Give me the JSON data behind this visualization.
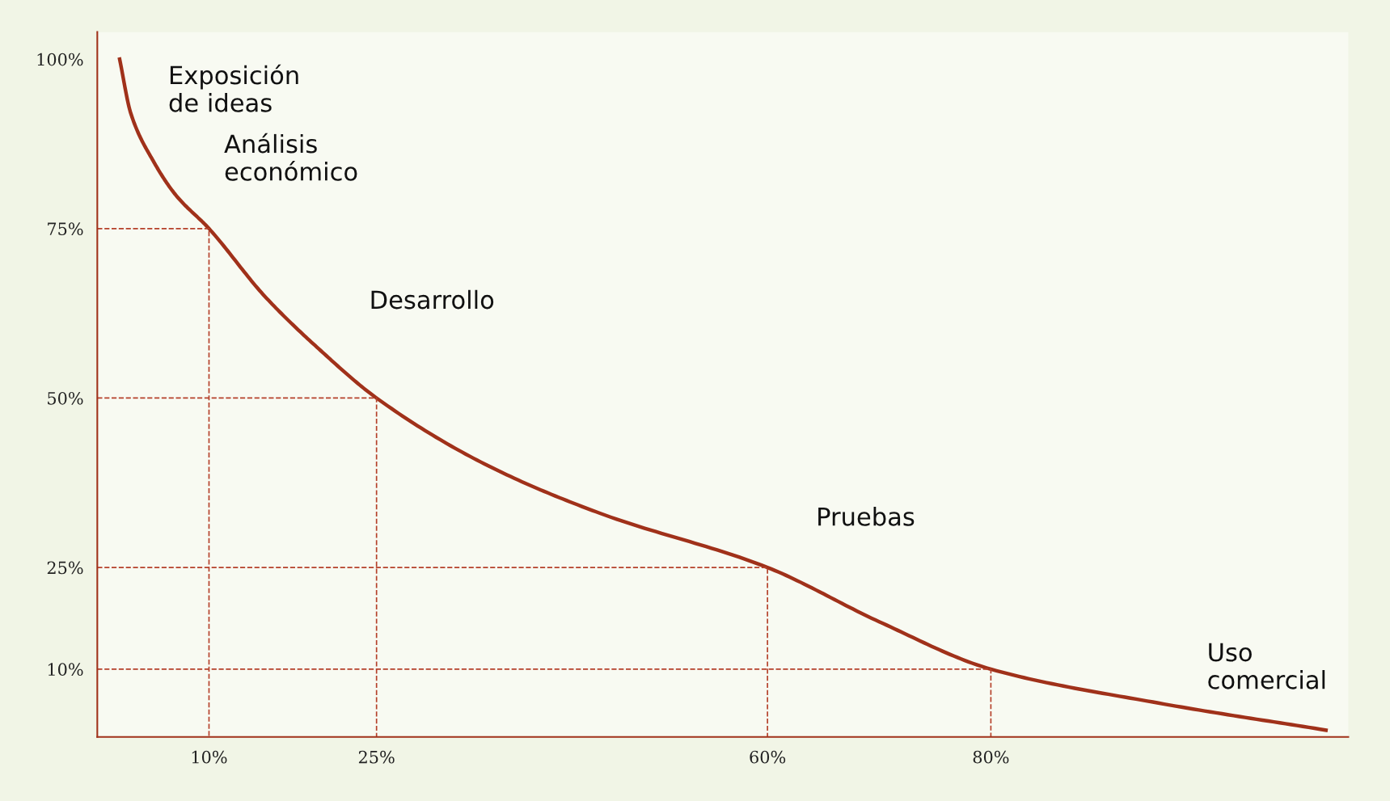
{
  "chart_data": {
    "type": "line",
    "xlim": [
      0,
      112
    ],
    "ylim": [
      0,
      104
    ],
    "xticks": [
      {
        "value": 10,
        "label": "10%"
      },
      {
        "value": 25,
        "label": "25%"
      },
      {
        "value": 60,
        "label": "60%"
      },
      {
        "value": 80,
        "label": "80%"
      }
    ],
    "yticks": [
      {
        "value": 10,
        "label": "10%"
      },
      {
        "value": 25,
        "label": "25%"
      },
      {
        "value": 50,
        "label": "50%"
      },
      {
        "value": 75,
        "label": "75%"
      },
      {
        "value": 100,
        "label": "100%"
      }
    ],
    "grid": false,
    "marker": "none",
    "series": [
      {
        "color": "#a0311a",
        "line_style": "solid",
        "x": [
          2,
          3,
          5,
          7,
          10,
          15,
          20,
          25,
          35,
          45,
          60,
          70,
          80,
          95,
          110
        ],
        "values": [
          100,
          92,
          85,
          80,
          75,
          65,
          57,
          50,
          40,
          33,
          25,
          17,
          10,
          5,
          1
        ]
      },
      {
        "color": "#b5402a",
        "line_style": "dashed",
        "x": [
          0,
          10,
          10
        ],
        "values": [
          75,
          75,
          0
        ]
      },
      {
        "color": "#b5402a",
        "line_style": "dashed",
        "x": [
          0,
          25,
          25
        ],
        "values": [
          50,
          50,
          0
        ]
      },
      {
        "color": "#b5402a",
        "line_style": "dashed",
        "x": [
          0,
          60,
          60
        ],
        "values": [
          25,
          25,
          0
        ]
      },
      {
        "color": "#b5402a",
        "line_style": "dashed",
        "x": [
          0,
          80,
          80
        ],
        "values": [
          10,
          10,
          0
        ]
      }
    ],
    "annotations": [
      "Exposición\nde ideas",
      "Análisis\neconómico",
      "Desarrollo",
      "Pruebas",
      "Uso\ncomercial"
    ]
  }
}
